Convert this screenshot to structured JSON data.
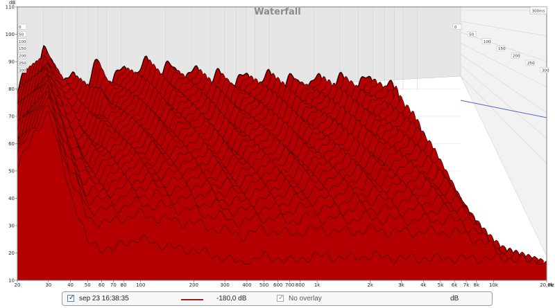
{
  "chart_data": {
    "type": "area",
    "title": "Waterfall",
    "xlabel": "Hz",
    "ylabel": "dB",
    "x_scale": "log",
    "xlim": [
      20,
      20000
    ],
    "ylim": [
      10,
      110
    ],
    "x_ticks": [
      20,
      30,
      40,
      50,
      60,
      70,
      80,
      100,
      200,
      300,
      400,
      500,
      600,
      700,
      800,
      1000,
      2000,
      3000,
      4000,
      5000,
      6000,
      7000,
      8000,
      10000,
      20000
    ],
    "x_tick_labels": [
      "20",
      "30",
      "40",
      "50",
      "60",
      "70",
      "80",
      "100",
      "200",
      "300",
      "400",
      "500",
      "600",
      "700",
      "800",
      "1k",
      "2k",
      "3k",
      "4k",
      "5k",
      "6k",
      "7k",
      "8k",
      "10k",
      "20,0k"
    ],
    "y_ticks": [
      10,
      20,
      30,
      40,
      50,
      60,
      70,
      80,
      90,
      100,
      110
    ],
    "depth_label": "300ms",
    "depth_ticks_left": [
      "0",
      "50",
      "100",
      "150",
      "200",
      "250",
      "300"
    ],
    "depth_ticks_right": [
      "0",
      "50",
      "100",
      "150",
      "200",
      "250",
      "300"
    ],
    "slice_count": 30,
    "fill_color": "#b40000",
    "line_color": "#1e0000",
    "back_plane_color": "#e6e6e6",
    "reference_line_color": "#5060d0",
    "front_envelope": {
      "x": [
        20,
        30,
        40,
        50,
        60,
        70,
        80,
        100,
        150,
        200,
        300,
        400,
        500,
        700,
        1000,
        1500,
        2000,
        3000,
        4000,
        5000,
        6000,
        7000,
        8000,
        10000,
        13000,
        16000,
        20000
      ],
      "y": [
        52,
        72,
        42,
        24,
        22,
        21,
        24,
        25,
        22,
        21,
        18,
        16,
        19,
        17,
        19,
        18,
        19,
        18,
        18,
        18,
        18,
        18,
        18,
        18,
        18,
        17,
        16
      ]
    },
    "back_envelope": {
      "x": [
        20,
        30,
        40,
        50,
        60,
        70,
        80,
        100,
        150,
        200,
        300,
        400,
        500,
        700,
        1000,
        1500,
        2000,
        3000,
        4000,
        5000,
        6000,
        7000,
        8000,
        10000,
        13000,
        16000,
        20000
      ],
      "y": [
        76,
        90,
        81,
        79,
        80,
        85,
        81,
        82,
        85,
        84,
        82,
        81,
        80,
        80,
        80,
        79,
        79,
        79,
        79,
        79,
        78,
        75,
        65,
        45,
        22,
        20,
        18
      ]
    }
  },
  "legend": {
    "item1_checked": true,
    "item1_label": "sep 23 16:38:35",
    "item1_value": "-180,0 dB",
    "item2_checked": true,
    "item2_label": "No overlay",
    "units": "dB",
    "series_color": "#a01818"
  }
}
